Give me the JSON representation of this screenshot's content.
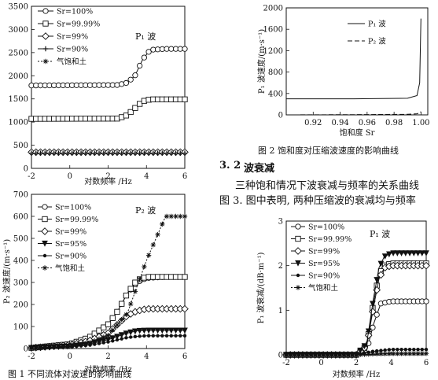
{
  "page": {
    "fig2_caption": "图 2  饱和度对压缩波速度的影响曲线",
    "section_number": "3. 2",
    "section_title": "波衰减",
    "paragraph_line1": "三种饱和情况下波衰减与频率的关系曲线",
    "paragraph_line2": "图 3. 图中表明, 两种压缩波的衰减均与频率",
    "fig1_caption": "图 1  不同流体对波速的影响曲线"
  },
  "chart_data": [
    {
      "id": "fig1a",
      "type": "line",
      "title": "P₁ 波",
      "xlabel": "对数频率 /Hz",
      "ylabel": "",
      "xlim": [
        -2,
        6
      ],
      "ylim": [
        0,
        3500
      ],
      "xticks": [
        "-2",
        "0",
        "2",
        "4",
        "6"
      ],
      "yticks": [
        "0",
        "500",
        "1000",
        "1500",
        "2000",
        "2500",
        "3000",
        "3500"
      ],
      "legend": [
        "Sr=100%",
        "Sr=99.99%",
        "Sr=99%",
        "Sr=90%",
        "气饱和土"
      ],
      "legend_position": "top-left",
      "series": [
        {
          "name": "Sr=100%",
          "marker": "circle",
          "x": [
            -2,
            2.5,
            3.0,
            3.4,
            3.8,
            4.2,
            5,
            6
          ],
          "y": [
            1790,
            1800,
            1850,
            2000,
            2350,
            2560,
            2580,
            2580
          ]
        },
        {
          "name": "Sr=99.99%",
          "marker": "square",
          "x": [
            -2,
            2.5,
            3.0,
            3.4,
            3.8,
            4.2,
            5,
            6
          ],
          "y": [
            1070,
            1075,
            1150,
            1300,
            1450,
            1490,
            1490,
            1490
          ]
        },
        {
          "name": "Sr=99%",
          "marker": "diamond",
          "x": [
            -2,
            6
          ],
          "y": [
            350,
            350
          ]
        },
        {
          "name": "Sr=90%",
          "marker": "plus",
          "x": [
            -2,
            6
          ],
          "y": [
            330,
            330
          ]
        }
      ]
    },
    {
      "id": "fig1b",
      "type": "line",
      "title": "P₂ 波",
      "xlabel": "对数频率 /Hz",
      "ylabel": "P₂ 波速度/(m·s⁻¹)",
      "xlim": [
        -2,
        6
      ],
      "ylim": [
        0,
        700
      ],
      "xticks": [
        "-2",
        "0",
        "2",
        "4",
        "6"
      ],
      "yticks": [
        "0",
        "100",
        "200",
        "300",
        "400",
        "500",
        "600",
        "700"
      ],
      "legend": [
        "Sr=100%",
        "Sr=99.99%",
        "Sr=99%",
        "Sr=95%",
        "Sr=90%",
        "气饱和土"
      ],
      "legend_position": "top-left",
      "series": [
        {
          "name": "Sr=100%",
          "marker": "circle",
          "x": [
            -2,
            0,
            1,
            2,
            2.5,
            3,
            3.5,
            4,
            5,
            6
          ],
          "y": [
            3,
            20,
            50,
            110,
            170,
            250,
            300,
            320,
            325,
            325
          ]
        },
        {
          "name": "Sr=99.99%",
          "marker": "square",
          "x": [
            -2,
            0,
            1,
            2,
            2.5,
            3,
            3.5,
            4,
            5,
            6
          ],
          "y": [
            3,
            20,
            50,
            110,
            170,
            250,
            310,
            325,
            325,
            325
          ]
        },
        {
          "name": "Sr=99%",
          "marker": "diamond",
          "x": [
            -2,
            0,
            1,
            2,
            2.5,
            3,
            3.5,
            4,
            5,
            6
          ],
          "y": [
            3,
            15,
            35,
            70,
            110,
            150,
            170,
            180,
            180,
            180
          ]
        },
        {
          "name": "Sr=95%",
          "marker": "triangle",
          "x": [
            -2,
            0,
            1,
            2,
            2.5,
            3,
            3.5,
            4,
            5,
            6
          ],
          "y": [
            3,
            10,
            20,
            40,
            55,
            70,
            80,
            82,
            82,
            82
          ]
        },
        {
          "name": "Sr=90%",
          "marker": "dot",
          "x": [
            -2,
            0,
            1,
            2,
            2.5,
            3,
            3.5,
            4,
            5,
            6
          ],
          "y": [
            3,
            8,
            15,
            30,
            40,
            50,
            55,
            58,
            58,
            58
          ]
        },
        {
          "name": "气饱和土",
          "marker": "star",
          "x": [
            -2,
            0,
            1,
            2,
            3,
            4,
            4.5,
            5,
            6
          ],
          "y": [
            3,
            10,
            25,
            60,
            160,
            400,
            500,
            600,
            600
          ]
        }
      ]
    },
    {
      "id": "fig2",
      "type": "line",
      "title": "",
      "xlabel": "饱和度 Sr",
      "ylabel": "P₁ 波速度/(m·s⁻¹)",
      "xlim": [
        0.9,
        1.005
      ],
      "ylim": [
        0,
        2000
      ],
      "xticks": [
        "0.92",
        "0.94",
        "0.96",
        "0.98",
        "1.00"
      ],
      "yticks": [
        "0",
        "400",
        "800",
        "1200",
        "1600",
        "2000"
      ],
      "legend": [
        "P₁ 波",
        "P₂ 波"
      ],
      "legend_position": "top-right",
      "series": [
        {
          "name": "P₁ 波",
          "style": "solid",
          "x": [
            0.9,
            0.95,
            0.99,
            0.997,
            0.999,
            0.9999
          ],
          "y": [
            300,
            300,
            310,
            360,
            600,
            1800
          ]
        },
        {
          "name": "P₂ 波",
          "style": "dashed",
          "x": [
            0.9,
            0.95,
            0.99,
            0.997,
            0.999,
            0.9999
          ],
          "y": [
            0,
            5,
            10,
            20,
            40,
            60
          ]
        }
      ]
    },
    {
      "id": "fig3",
      "type": "line",
      "title": "P₁ 波",
      "xlabel": "对数频率 /Hz",
      "ylabel": "P₁ 波衰减/(dB·m⁻¹)",
      "xlim": [
        -2,
        6
      ],
      "ylim": [
        0,
        3
      ],
      "xticks": [
        "-2",
        "0",
        "2",
        "4",
        "6"
      ],
      "yticks": [
        "0",
        "1",
        "2",
        "3"
      ],
      "legend": [
        "Sr=100%",
        "Sr=99.99%",
        "Sr=99%",
        "Sr=95%",
        "Sr=90%",
        "气饱和土"
      ],
      "legend_position": "top-left",
      "series": [
        {
          "name": "Sr=100%",
          "marker": "circle",
          "x": [
            -2,
            2,
            2.6,
            3.0,
            3.4,
            4,
            6
          ],
          "y": [
            0,
            0,
            0.1,
            0.7,
            1.15,
            1.2,
            1.2
          ]
        },
        {
          "name": "Sr=99.99%",
          "marker": "square",
          "x": [
            -2,
            2,
            2.6,
            3.0,
            3.3,
            3.6,
            4,
            6
          ],
          "y": [
            0,
            0,
            0.2,
            1.2,
            1.8,
            2.0,
            2.05,
            2.05
          ]
        },
        {
          "name": "Sr=99%",
          "marker": "diamond",
          "x": [
            -2,
            2,
            2.6,
            3.0,
            3.3,
            3.6,
            4,
            6
          ],
          "y": [
            0,
            0,
            0.2,
            1.1,
            1.7,
            1.95,
            2.0,
            2.0
          ]
        },
        {
          "name": "Sr=95%",
          "marker": "triangle",
          "x": [
            -2,
            2,
            2.6,
            3.0,
            3.3,
            3.6,
            4,
            6
          ],
          "y": [
            0,
            0,
            0.25,
            1.3,
            1.95,
            2.2,
            2.28,
            2.28
          ]
        },
        {
          "name": "Sr=90%",
          "marker": "dot",
          "x": [
            -2,
            2,
            3,
            4,
            6
          ],
          "y": [
            0,
            0,
            0.08,
            0.12,
            0.12
          ]
        },
        {
          "name": "气饱和土",
          "marker": "star",
          "x": [
            -2,
            2,
            3,
            4,
            6
          ],
          "y": [
            0,
            0,
            0.02,
            0.03,
            0.03
          ]
        }
      ]
    }
  ]
}
